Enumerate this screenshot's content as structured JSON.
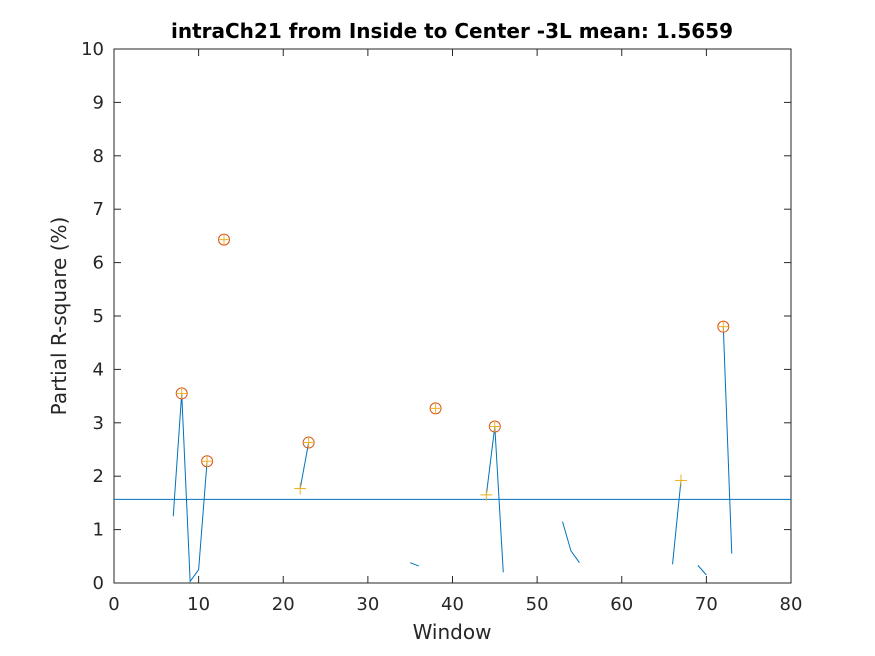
{
  "chart_data": {
    "type": "line",
    "title": "intraCh21 from Inside to Center -3L mean: 1.5659",
    "xlabel": "Window",
    "ylabel": "Partial R-square (%)",
    "xlim": [
      0,
      80
    ],
    "ylim": [
      0,
      10
    ],
    "xticks": [
      0,
      10,
      20,
      30,
      40,
      50,
      60,
      70,
      80
    ],
    "yticks": [
      0,
      1,
      2,
      3,
      4,
      5,
      6,
      7,
      8,
      9,
      10
    ],
    "grid": false,
    "legend": "none",
    "mean_line": 1.5659,
    "line_color": "#0072bd",
    "segments": [
      [
        [
          7,
          1.25
        ],
        [
          8,
          3.55
        ],
        [
          9,
          0.03
        ],
        [
          10,
          0.25
        ],
        [
          11,
          2.28
        ]
      ],
      [
        [
          22,
          1.77
        ],
        [
          23,
          2.63
        ]
      ],
      [
        [
          35,
          0.38
        ],
        [
          36,
          0.32
        ]
      ],
      [
        [
          44,
          1.65
        ],
        [
          45,
          2.93
        ],
        [
          46,
          0.2
        ]
      ],
      [
        [
          53,
          1.15
        ],
        [
          54,
          0.6
        ],
        [
          55,
          0.38
        ]
      ],
      [
        [
          66,
          0.35
        ],
        [
          67,
          1.92
        ]
      ],
      [
        [
          69,
          0.33
        ],
        [
          70,
          0.15
        ]
      ],
      [
        [
          72,
          4.8
        ],
        [
          73,
          0.55
        ]
      ]
    ],
    "peak_markers": {
      "style": "circle-plus",
      "color": "#d95319",
      "points": [
        [
          8,
          3.55
        ],
        [
          11,
          2.28
        ],
        [
          13,
          6.43
        ],
        [
          23,
          2.63
        ],
        [
          38,
          3.27
        ],
        [
          45,
          2.93
        ],
        [
          72,
          4.8
        ]
      ]
    },
    "plus_markers": {
      "style": "plus",
      "color": "#edb120",
      "points": [
        [
          22,
          1.77
        ],
        [
          44,
          1.65
        ],
        [
          67,
          1.92
        ]
      ]
    }
  }
}
